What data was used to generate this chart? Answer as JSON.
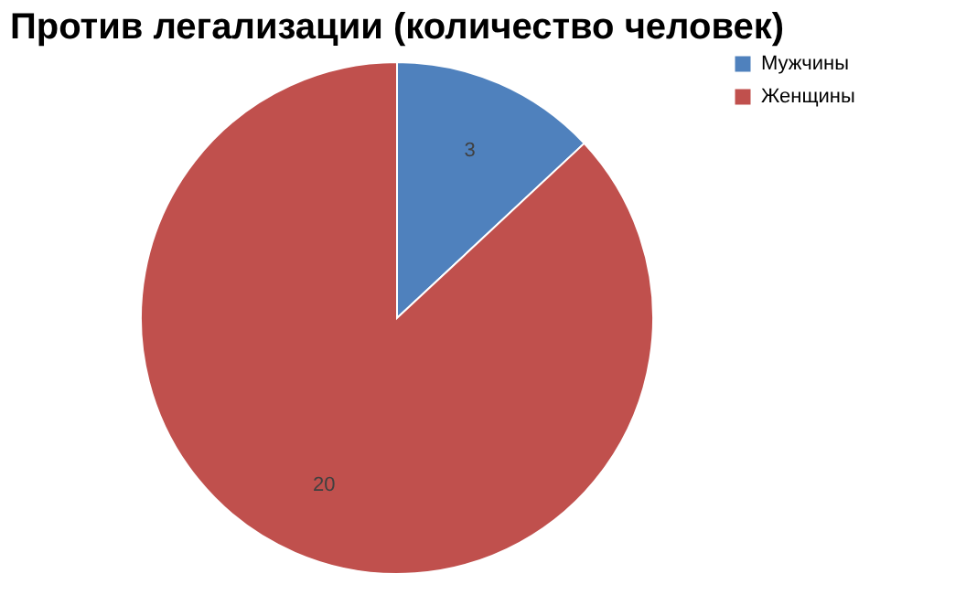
{
  "chart_data": {
    "type": "pie",
    "title": "Против легализации (количество человек)",
    "categories": [
      "Мужчины",
      "Женщины"
    ],
    "values": [
      3,
      20
    ],
    "colors": [
      "#4f81bd",
      "#c0504d"
    ],
    "data_labels": true,
    "legend": "right"
  }
}
